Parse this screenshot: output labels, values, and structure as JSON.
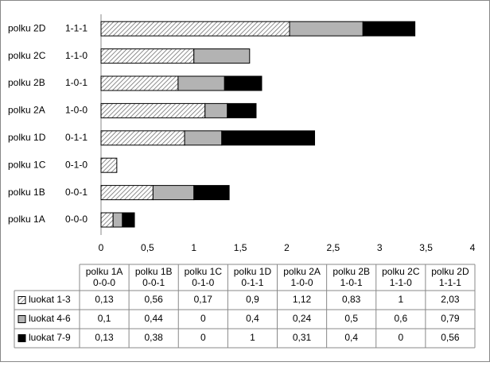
{
  "chart_data": {
    "type": "bar",
    "orientation": "horizontal",
    "stacked": true,
    "grid": false,
    "categories": [
      "polku 1A",
      "polku 1B",
      "polku 1C",
      "polku 1D",
      "polku 2A",
      "polku 2B",
      "polku 2C",
      "polku 2D"
    ],
    "codes": [
      "0-0-0",
      "0-0-1",
      "0-1-0",
      "0-1-1",
      "1-0-0",
      "1-0-1",
      "1-1-0",
      "1-1-1"
    ],
    "series": [
      {
        "name": "luokat 1-3",
        "color": "#707070",
        "hatch": true,
        "values": [
          0.13,
          0.56,
          0.17,
          0.9,
          1.12,
          0.83,
          1,
          2.03
        ],
        "value_labels": [
          "0,13",
          "0,56",
          "0,17",
          "0,9",
          "1,12",
          "0,83",
          "1",
          "2,03"
        ]
      },
      {
        "name": "luokat 4-6",
        "color": "#b3b3b3",
        "hatch": false,
        "values": [
          0.1,
          0.44,
          0,
          0.4,
          0.24,
          0.5,
          0.6,
          0.79
        ],
        "value_labels": [
          "0,1",
          "0,44",
          "0",
          "0,4",
          "0,24",
          "0,5",
          "0,6",
          "0,79"
        ]
      },
      {
        "name": "luokat 7-9",
        "color": "#000000",
        "hatch": false,
        "values": [
          0.13,
          0.38,
          0,
          1,
          0.31,
          0.4,
          0,
          0.56
        ],
        "value_labels": [
          "0,13",
          "0,38",
          "0",
          "1",
          "0,31",
          "0,4",
          "0",
          "0,56"
        ]
      }
    ],
    "xlim": [
      0,
      4
    ],
    "xticks": [
      0,
      {
        "value": 0.5,
        "label": "0,5"
      },
      1,
      {
        "value": 1.5,
        "label": "1,5"
      },
      2,
      {
        "value": 2.5,
        "label": "2,5"
      },
      3,
      {
        "value": 3.5,
        "label": "3,5"
      },
      4
    ]
  }
}
